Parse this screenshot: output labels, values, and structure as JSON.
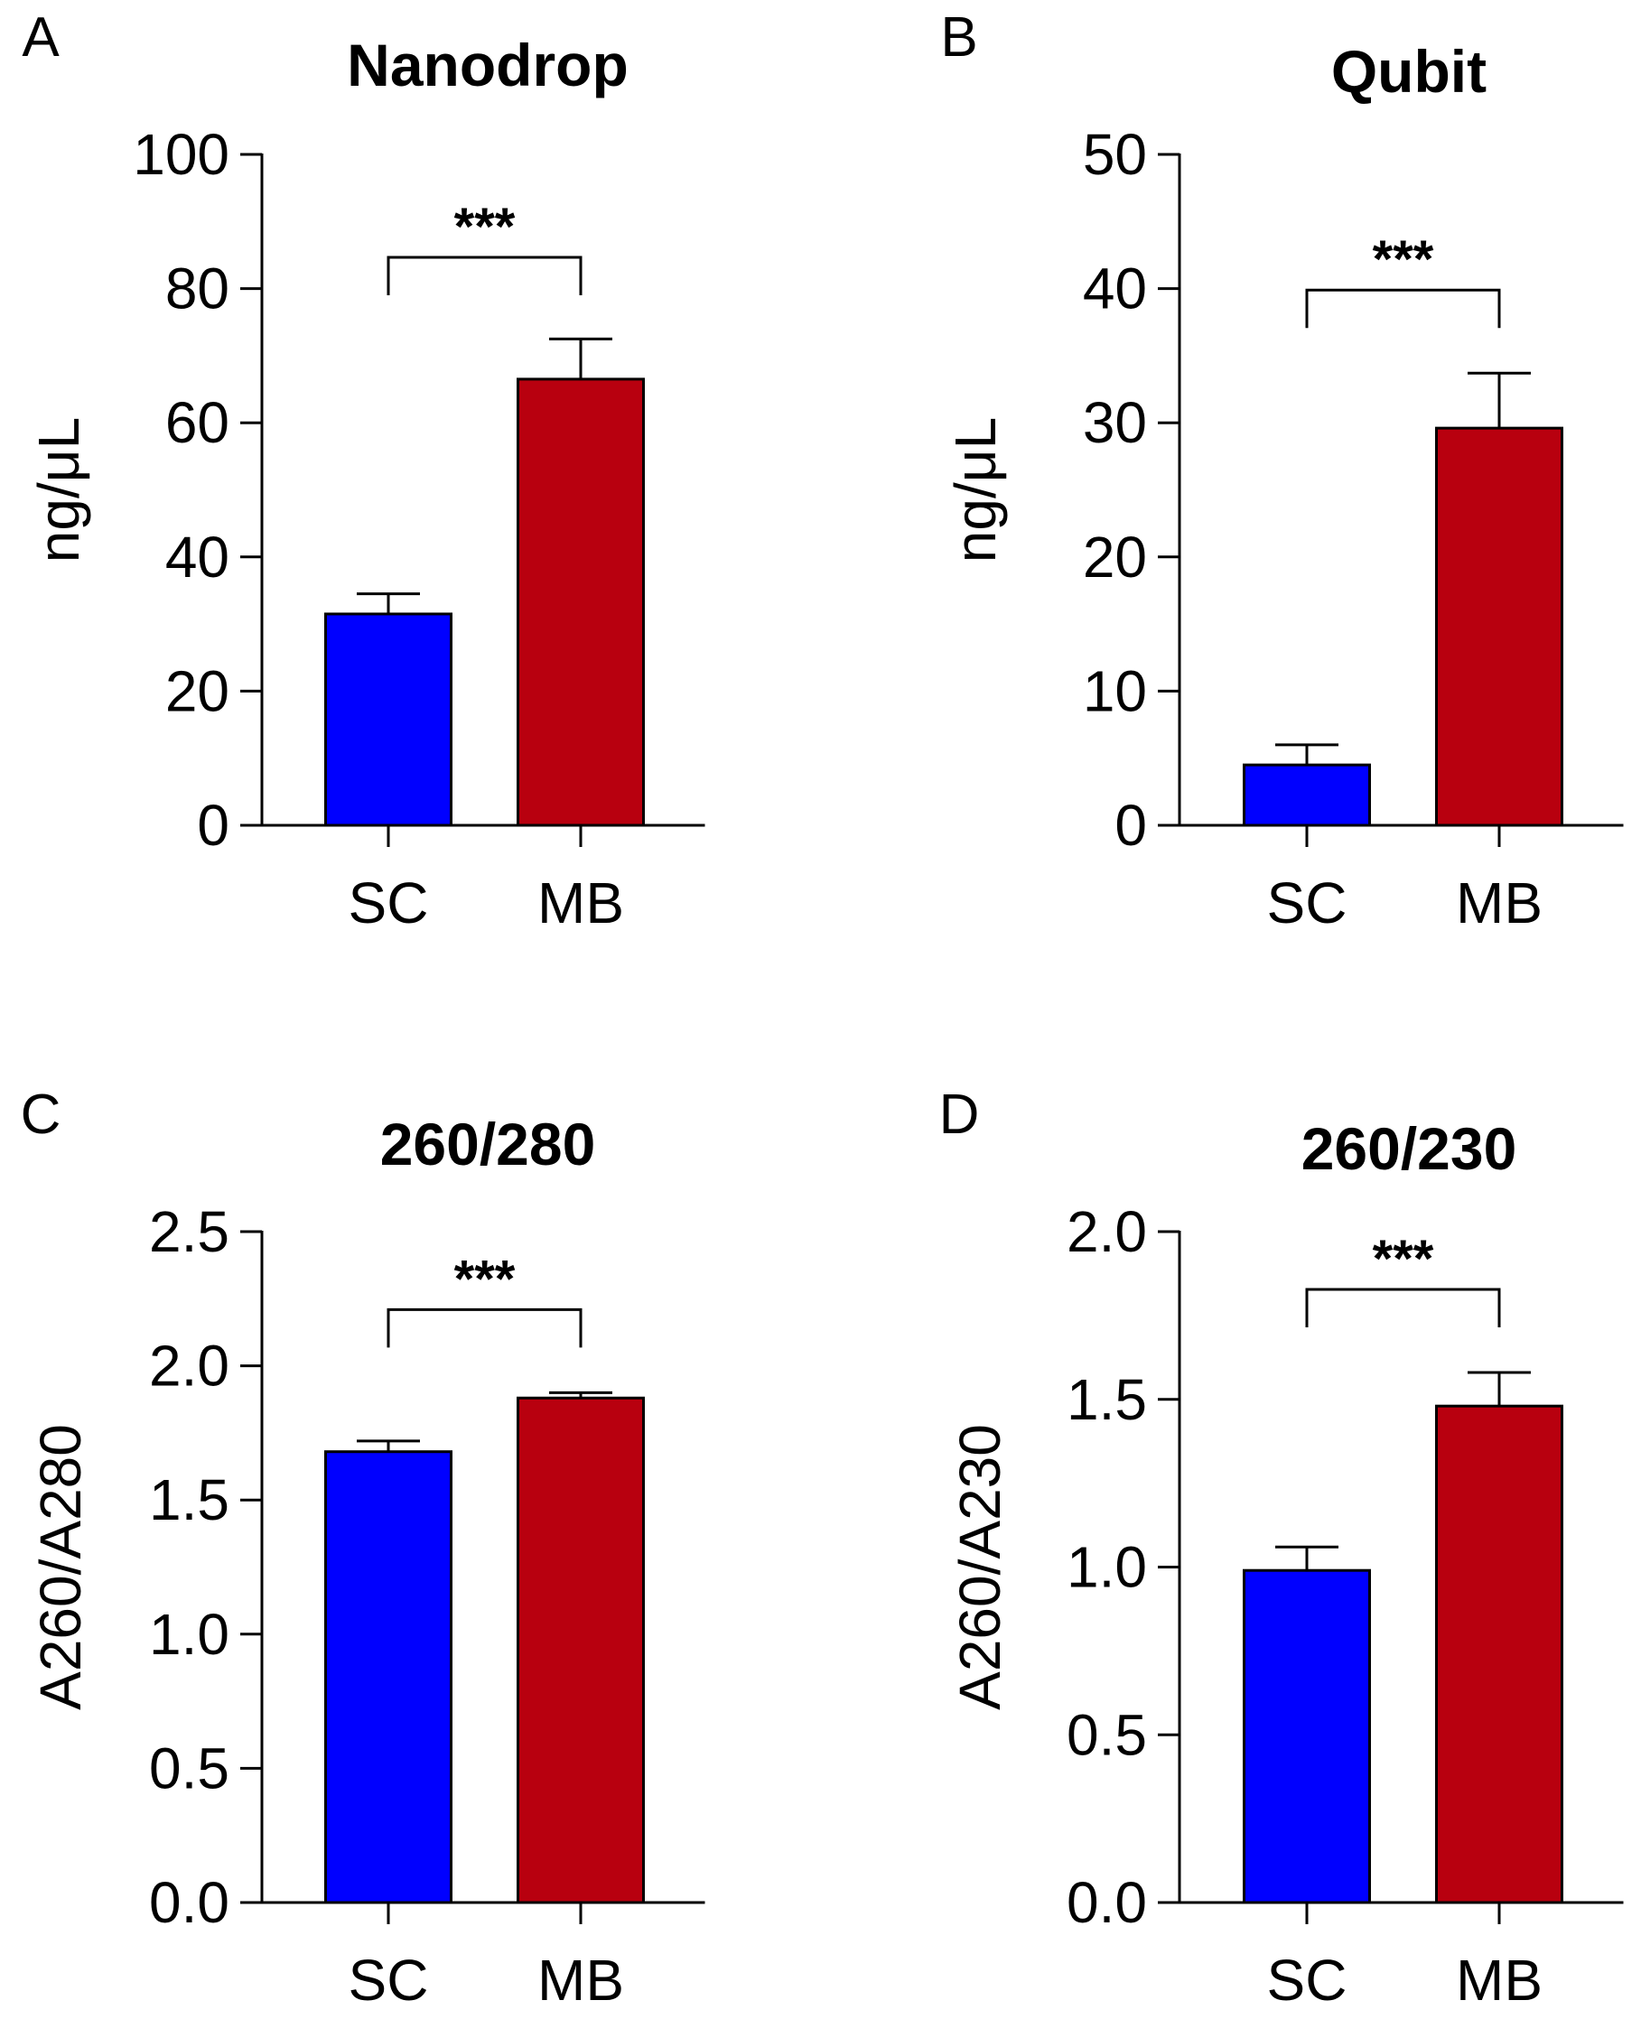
{
  "chart_data": [
    {
      "panel_label": "A",
      "type": "bar",
      "title": "Nanodrop",
      "xlabel": "",
      "ylabel": "ng/μL",
      "ylim": [
        0,
        100
      ],
      "yticks": [
        "0",
        "20",
        "40",
        "60",
        "80",
        "100"
      ],
      "categories": [
        "SC",
        "MB"
      ],
      "values": [
        31.5,
        66.5
      ],
      "errors": [
        3.0,
        6.0
      ],
      "significance": "***"
    },
    {
      "panel_label": "B",
      "type": "bar",
      "title": "Qubit",
      "xlabel": "",
      "ylabel": "ng/μL",
      "ylim": [
        0,
        50
      ],
      "yticks": [
        "0",
        "10",
        "20",
        "30",
        "40",
        "50"
      ],
      "categories": [
        "SC",
        "MB"
      ],
      "values": [
        4.5,
        29.6
      ],
      "errors": [
        1.5,
        4.1
      ],
      "significance": "***"
    },
    {
      "panel_label": "C",
      "type": "bar",
      "title": "260/280",
      "xlabel": "",
      "ylabel": "A260/A280",
      "ylim": [
        0,
        2.5
      ],
      "yticks": [
        "0.0",
        "0.5",
        "1.0",
        "1.5",
        "2.0",
        "2.5"
      ],
      "categories": [
        "SC",
        "MB"
      ],
      "values": [
        1.68,
        1.88
      ],
      "errors": [
        0.04,
        0.02
      ],
      "significance": "***"
    },
    {
      "panel_label": "D",
      "type": "bar",
      "title": "260/230",
      "xlabel": "",
      "ylabel": "A260/A230",
      "ylim": [
        0,
        2.0
      ],
      "yticks": [
        "0.0",
        "0.5",
        "1.0",
        "1.5",
        "2.0"
      ],
      "categories": [
        "SC",
        "MB"
      ],
      "values": [
        0.99,
        1.48
      ],
      "errors": [
        0.07,
        0.1
      ],
      "significance": "***"
    }
  ],
  "colors": {
    "SC": "#0000ff",
    "MB": "#b8000f",
    "axis": "#000000"
  }
}
